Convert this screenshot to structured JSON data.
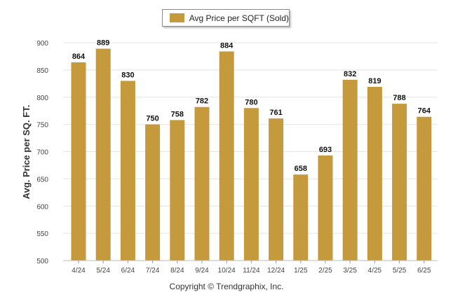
{
  "legend": {
    "label": "Avg Price per SQFT (Sold)"
  },
  "footer": {
    "copyright": "Copyright © Trendgraphix, Inc."
  },
  "colors": {
    "bar": "#C49A3C",
    "grid": "#e4e4e4",
    "axis_text": "#444444",
    "label_text": "#111111"
  },
  "chart_data": {
    "type": "bar",
    "categories": [
      "4/24",
      "5/24",
      "6/24",
      "7/24",
      "8/24",
      "9/24",
      "10/24",
      "11/24",
      "12/24",
      "1/25",
      "2/25",
      "3/25",
      "4/25",
      "5/25",
      "6/25"
    ],
    "series": [
      {
        "name": "Avg Price per SQFT (Sold)",
        "values": [
          864,
          889,
          830,
          750,
          758,
          782,
          884,
          780,
          761,
          658,
          693,
          832,
          819,
          788,
          764
        ]
      }
    ],
    "ylabel": "Avg. Price per SQ. FT.",
    "xlabel": "",
    "ylim": [
      500,
      900
    ],
    "yticks": [
      500,
      550,
      600,
      650,
      700,
      750,
      800,
      850,
      900
    ],
    "grid": true,
    "legend_position": "top-center",
    "data_labels": true
  }
}
